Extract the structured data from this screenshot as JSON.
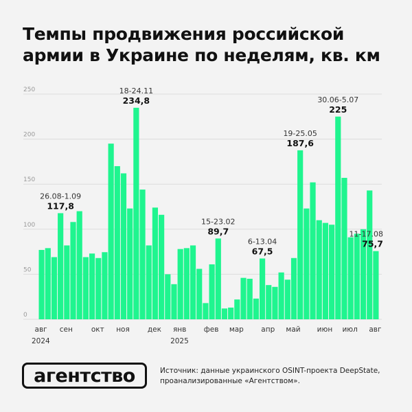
{
  "title": "Темпы продвижения российской армии в Украине по неделям, кв. км",
  "logo": "агентство",
  "source": "Источник: данные украинского OSINT-проекта DeepState, проанализированные «Агентством».",
  "colors": {
    "bar": "#1ff58f",
    "background": "#f3f3f3",
    "grid": "#dcdcdc"
  },
  "chart_data": {
    "type": "bar",
    "ylim": [
      0,
      250
    ],
    "yticks": [
      0,
      50,
      100,
      150,
      200,
      250
    ],
    "grid": true,
    "month_labels": [
      {
        "label": "авг",
        "bar": 0
      },
      {
        "label": "сен",
        "bar": 4
      },
      {
        "label": "окт",
        "bar": 9
      },
      {
        "label": "ноя",
        "bar": 13
      },
      {
        "label": "дек",
        "bar": 18
      },
      {
        "label": "янв",
        "bar": 22
      },
      {
        "label": "фев",
        "bar": 27
      },
      {
        "label": "мар",
        "bar": 31
      },
      {
        "label": "апр",
        "bar": 36
      },
      {
        "label": "май",
        "bar": 40
      },
      {
        "label": "июн",
        "bar": 45
      },
      {
        "label": "июл",
        "bar": 49
      },
      {
        "label": "авг",
        "bar": 53
      }
    ],
    "year_labels": [
      {
        "label": "2024",
        "bar": 0
      },
      {
        "label": "2025",
        "bar": 22
      }
    ],
    "values": [
      77,
      79,
      69,
      117.8,
      82,
      108,
      120,
      69,
      73,
      68,
      74.5,
      195,
      170,
      162,
      123,
      234.8,
      144,
      82,
      124,
      116,
      50,
      39,
      78,
      79,
      82,
      56,
      18,
      61,
      89.7,
      12,
      13,
      22,
      46,
      45,
      23,
      67.5,
      38,
      36,
      52,
      44,
      68,
      187.6,
      123,
      152,
      110,
      107,
      105,
      225,
      157,
      91,
      95,
      100,
      143,
      75.7
    ],
    "annotations": [
      {
        "bar": 3,
        "period": "26.08-1.09",
        "value": "117,8"
      },
      {
        "bar": 15,
        "period": "18-24.11",
        "value": "234,8"
      },
      {
        "bar": 28,
        "period": "15-23.02",
        "value": "89,7"
      },
      {
        "bar": 35,
        "period": "6-13.04",
        "value": "67,5"
      },
      {
        "bar": 41,
        "period": "19-25.05",
        "value": "187,6"
      },
      {
        "bar": 47,
        "period": "30.06-5.07",
        "value": "225"
      },
      {
        "bar": 53,
        "period": "11-17.08",
        "value": "75,7"
      }
    ]
  }
}
